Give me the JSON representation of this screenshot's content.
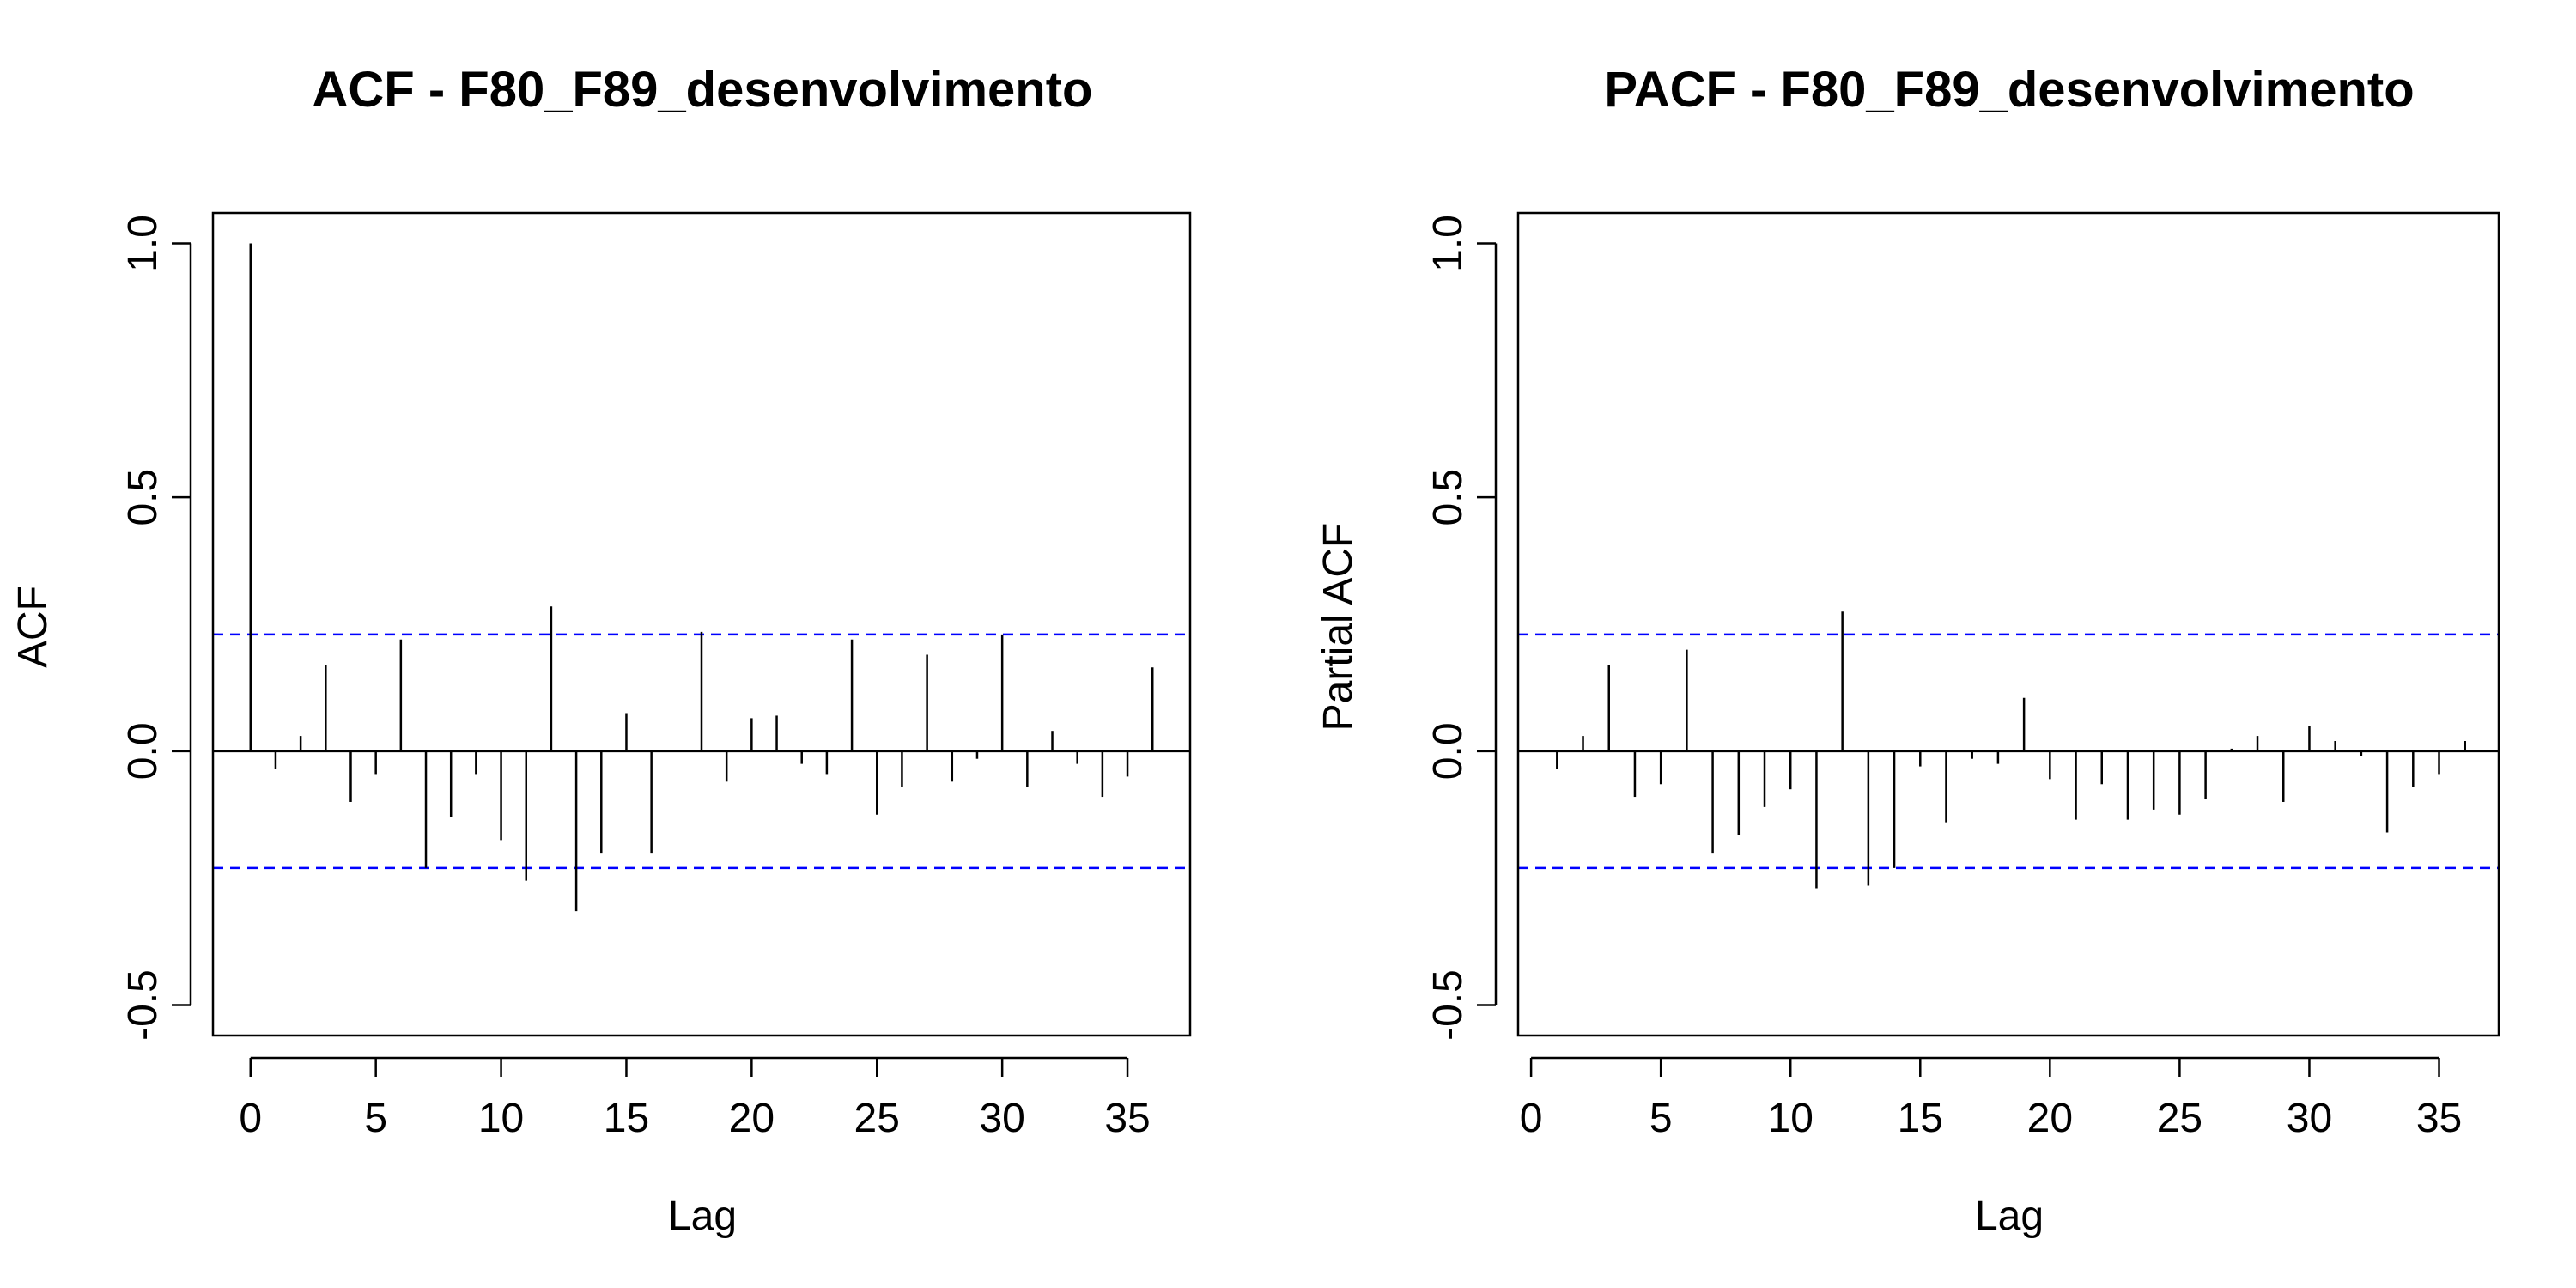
{
  "chart_data": [
    {
      "type": "bar",
      "subtype": "acf",
      "title": "ACF - F80_F89_desenvolvimento",
      "xlabel": "Lag",
      "ylabel": "ACF",
      "xlim": [
        -1.5,
        37.5
      ],
      "ylim": [
        -0.56,
        1.06
      ],
      "xticks": [
        0,
        5,
        10,
        15,
        20,
        25,
        30,
        35
      ],
      "yticks": [
        -0.5,
        0.0,
        0.5,
        1.0
      ],
      "ytick_labels": [
        "-0.5",
        "0.0",
        "0.5",
        "1.0"
      ],
      "confidence_bound": 0.23,
      "confidence_color": "#0000ff",
      "grid": false,
      "lags": [
        0,
        1,
        2,
        3,
        4,
        5,
        6,
        7,
        8,
        9,
        10,
        11,
        12,
        13,
        14,
        15,
        16,
        17,
        18,
        19,
        20,
        21,
        22,
        23,
        24,
        25,
        26,
        27,
        28,
        29,
        30,
        31,
        32,
        33,
        34,
        35,
        36
      ],
      "values": [
        1.0,
        -0.035,
        0.03,
        0.17,
        -0.1,
        -0.045,
        0.22,
        -0.23,
        -0.13,
        -0.045,
        -0.175,
        -0.255,
        0.285,
        -0.315,
        -0.2,
        0.075,
        -0.2,
        0.0,
        0.235,
        -0.06,
        0.065,
        0.07,
        -0.025,
        -0.045,
        0.22,
        -0.125,
        -0.07,
        0.19,
        -0.06,
        -0.015,
        0.23,
        -0.07,
        0.04,
        -0.025,
        -0.09,
        -0.05,
        0.165
      ]
    },
    {
      "type": "bar",
      "subtype": "pacf",
      "title": "PACF - F80_F89_desenvolvimento",
      "xlabel": "Lag",
      "ylabel": "Partial ACF",
      "xlim": [
        -0.5,
        37.3
      ],
      "ylim": [
        -0.56,
        1.06
      ],
      "xticks": [
        0,
        5,
        10,
        15,
        20,
        25,
        30,
        35
      ],
      "yticks": [
        -0.5,
        0.0,
        0.5,
        1.0
      ],
      "ytick_labels": [
        "-0.5",
        "0.0",
        "0.5",
        "1.0"
      ],
      "confidence_bound": 0.23,
      "confidence_color": "#0000ff",
      "grid": false,
      "lags": [
        1,
        2,
        3,
        4,
        5,
        6,
        7,
        8,
        9,
        10,
        11,
        12,
        13,
        14,
        15,
        16,
        17,
        18,
        19,
        20,
        21,
        22,
        23,
        24,
        25,
        26,
        27,
        28,
        29,
        30,
        31,
        32,
        33,
        34,
        35,
        36
      ],
      "values": [
        -0.035,
        0.03,
        0.17,
        -0.09,
        -0.065,
        0.2,
        -0.2,
        -0.165,
        -0.11,
        -0.075,
        -0.27,
        0.275,
        -0.265,
        -0.23,
        -0.03,
        -0.14,
        -0.015,
        -0.025,
        0.105,
        -0.055,
        -0.135,
        -0.065,
        -0.135,
        -0.115,
        -0.125,
        -0.095,
        0.005,
        0.03,
        -0.1,
        0.05,
        0.02,
        -0.01,
        -0.16,
        -0.07,
        -0.045,
        0.02
      ]
    }
  ]
}
